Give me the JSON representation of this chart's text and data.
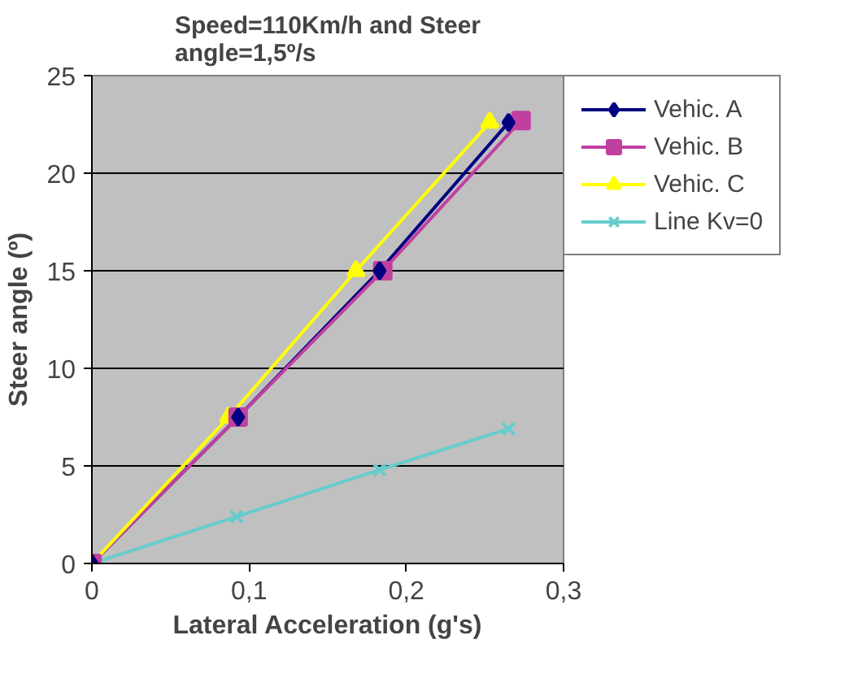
{
  "chart_data": {
    "type": "line",
    "title": "Speed=110Km/h and Steer angle=1,5º/s",
    "xlabel": "Lateral Acceleration (g's)",
    "ylabel": "Steer angle (º)",
    "xlim": [
      0,
      0.3
    ],
    "xticks": [
      0,
      {
        "value": 0.1,
        "label": "0,1"
      },
      {
        "value": 0.2,
        "label": "0,2"
      },
      {
        "value": 0.3,
        "label": "0,3"
      }
    ],
    "ylim": [
      0,
      25
    ],
    "yticks": [
      0,
      5,
      10,
      15,
      20,
      25
    ],
    "grid": "y",
    "legend": "right",
    "series": [
      {
        "name": "Vehic. A",
        "color": "#000080",
        "marker": "diamond",
        "x": [
          0,
          0.093,
          0.183,
          0.265
        ],
        "values": [
          0,
          7.5,
          15,
          22.6
        ]
      },
      {
        "name": "Vehic. B",
        "color": "#c040a0",
        "marker": "square",
        "x": [
          0,
          0.093,
          0.185,
          0.273
        ],
        "values": [
          0,
          7.5,
          15,
          22.7
        ]
      },
      {
        "name": "Vehic. C",
        "color": "#ffff00",
        "marker": "triangle",
        "x": [
          0,
          0.087,
          0.168,
          0.253
        ],
        "values": [
          0,
          7.5,
          15,
          22.6
        ]
      },
      {
        "name": "Line Kv=0",
        "color": "#66cccc",
        "marker": "x",
        "x": [
          0,
          0.092,
          0.183,
          0.265
        ],
        "values": [
          0,
          2.4,
          4.8,
          6.9
        ]
      }
    ]
  }
}
